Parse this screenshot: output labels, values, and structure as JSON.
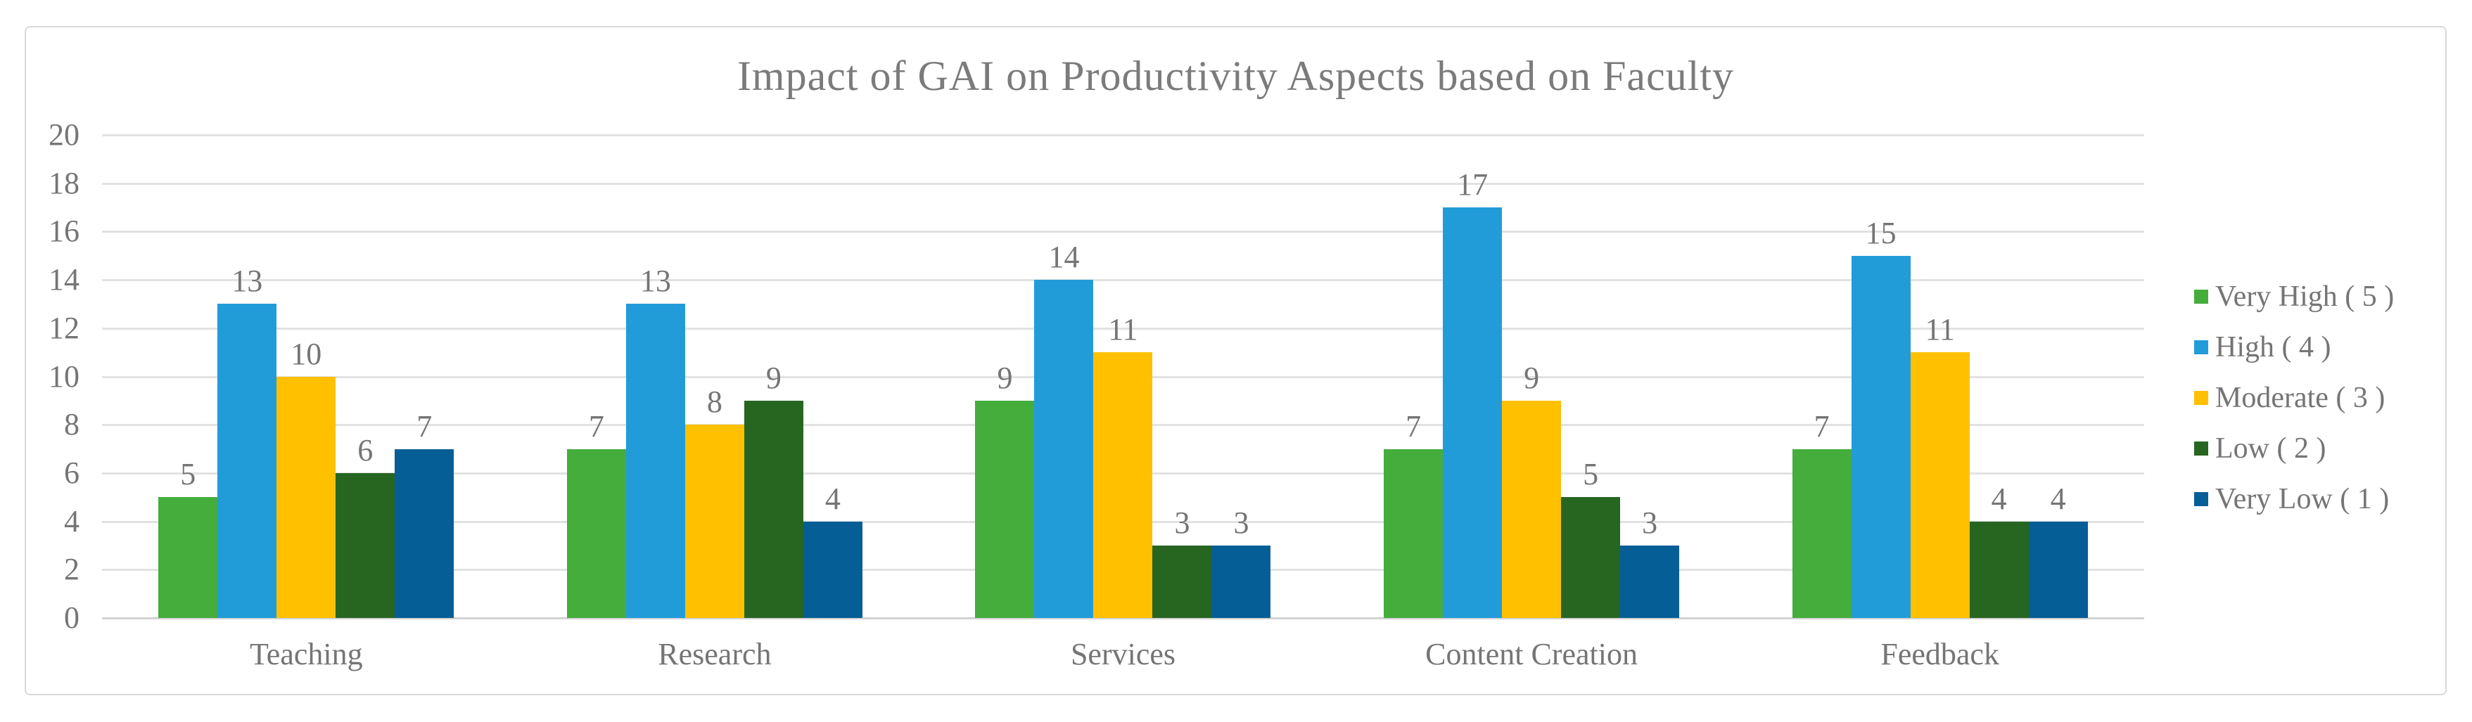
{
  "colors": {
    "background": "#ffffff",
    "card_border": "#d9d9d9",
    "title_text": "#7b7b7b",
    "axis_text": "#757575",
    "gridline": "#e2e2e2",
    "baseline": "#d2d2d2"
  },
  "chart_data": {
    "type": "bar",
    "title": "Impact of GAI on Productivity Aspects based on Faculty",
    "categories": [
      "Teaching",
      "Research",
      "Services",
      "Content Creation",
      "Feedback"
    ],
    "series": [
      {
        "name": "Very High ( 5 )",
        "color": "#44ad3c",
        "values": [
          5,
          7,
          9,
          7,
          7
        ]
      },
      {
        "name": "High ( 4 )",
        "color": "#229cd9",
        "values": [
          13,
          13,
          14,
          17,
          15
        ]
      },
      {
        "name": "Moderate ( 3 )",
        "color": "#ffc000",
        "values": [
          10,
          8,
          11,
          9,
          11
        ]
      },
      {
        "name": "Low ( 2 )",
        "color": "#276621",
        "values": [
          6,
          9,
          3,
          5,
          4
        ]
      },
      {
        "name": "Very Low ( 1 )",
        "color": "#065e96",
        "values": [
          7,
          4,
          3,
          3,
          4
        ]
      }
    ],
    "xlabel": "",
    "ylabel": "",
    "ylim": [
      0,
      20
    ],
    "yticks": [
      0,
      2,
      4,
      6,
      8,
      10,
      12,
      14,
      16,
      18,
      20
    ],
    "grid": "horizontal",
    "legend_position": "right",
    "data_labels": true
  }
}
